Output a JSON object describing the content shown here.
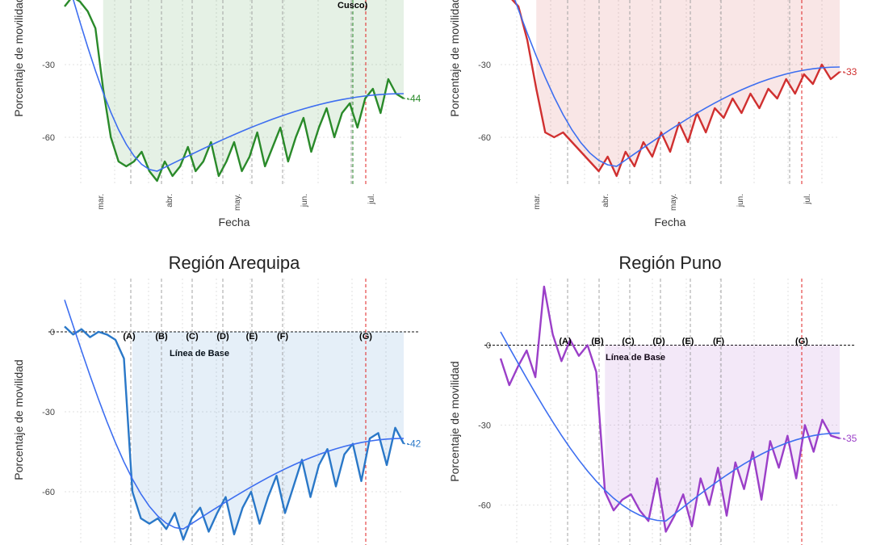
{
  "chart_data": [
    {
      "type": "line",
      "panel": "top-left",
      "title": "",
      "xlabel": "Fecha",
      "ylabel": "Porcentaje de movilidad",
      "ylim": [
        -80,
        0
      ],
      "yticks": [
        -30,
        -60
      ],
      "ytick_labels": [
        "-30",
        "-60"
      ],
      "xticks": [
        "mar.",
        "abr.",
        "may.",
        "jun.",
        "jul."
      ],
      "color": "#2a8a2a",
      "end_label": "-44",
      "annotations": [
        "Cusco)"
      ],
      "series": [
        {
          "values": [
            -6,
            -2,
            -4,
            -8,
            -15,
            -40,
            -60,
            -70,
            -72,
            -70,
            -66,
            -74,
            -78,
            -70,
            -76,
            -72,
            -64,
            -74,
            -70,
            -62,
            -76,
            -70,
            -62,
            -74,
            -68,
            -58,
            -72,
            -64,
            -56,
            -70,
            -60,
            -52,
            -66,
            -56,
            -48,
            -60,
            -50,
            -46,
            -56,
            -44,
            -40,
            -50,
            -36,
            -42,
            -44
          ]
        }
      ]
    },
    {
      "type": "line",
      "panel": "top-right",
      "title": "",
      "xlabel": "Fecha",
      "ylabel": "Porcentaje de movilidad",
      "ylim": [
        -80,
        0
      ],
      "yticks": [
        -30,
        -60
      ],
      "ytick_labels": [
        "-30",
        "-60"
      ],
      "xticks": [
        "mar.",
        "abr.",
        "may.",
        "jun.",
        "jul."
      ],
      "color": "#d03030",
      "end_label": "-33",
      "series": [
        {
          "values": [
            -2,
            -2,
            -6,
            -20,
            -40,
            -58,
            -60,
            -58,
            -62,
            -66,
            -70,
            -74,
            -68,
            -76,
            -66,
            -72,
            -62,
            -68,
            -58,
            -66,
            -54,
            -62,
            -50,
            -58,
            -48,
            -52,
            -44,
            -50,
            -42,
            -48,
            -40,
            -44,
            -36,
            -42,
            -34,
            -38,
            -30,
            -36,
            -33
          ]
        }
      ]
    },
    {
      "type": "line",
      "panel": "bottom-left",
      "title": "Región Arequipa",
      "xlabel": "",
      "ylabel": "Porcentaje de movilidad",
      "ylim": [
        -80,
        20
      ],
      "yticks": [
        0,
        -30,
        -60
      ],
      "ytick_labels": [
        "0",
        "-30",
        "-60"
      ],
      "baseline_label": "Línea de Base",
      "events": [
        "(A)",
        "(B)",
        "(C)",
        "(D)",
        "(E)",
        "(F)",
        "(G)"
      ],
      "color": "#2a78c8",
      "end_label": "-42",
      "series": [
        {
          "values": [
            2,
            -1,
            1,
            -2,
            0,
            -1,
            -3,
            -10,
            -60,
            -70,
            -72,
            -70,
            -74,
            -68,
            -78,
            -70,
            -66,
            -75,
            -68,
            -62,
            -76,
            -66,
            -60,
            -72,
            -62,
            -54,
            -68,
            -58,
            -48,
            -62,
            -50,
            -44,
            -58,
            -46,
            -42,
            -56,
            -40,
            -38,
            -50,
            -36,
            -42
          ]
        }
      ]
    },
    {
      "type": "line",
      "panel": "bottom-right",
      "title": "Región Puno",
      "xlabel": "",
      "ylabel": "Porcentaje de movilidad",
      "ylim": [
        -75,
        25
      ],
      "yticks": [
        0,
        -30,
        -60
      ],
      "ytick_labels": [
        "0",
        "-30",
        "-60"
      ],
      "baseline_label": "Línea de Base",
      "events": [
        "(A)",
        "(B)",
        "(C)",
        "(D)",
        "(E)",
        "(F)",
        "(G)"
      ],
      "color": "#9b3fc8",
      "end_label": "-35",
      "series": [
        {
          "values": [
            -5,
            -15,
            -8,
            -2,
            -12,
            22,
            4,
            -6,
            2,
            -4,
            0,
            -10,
            -55,
            -62,
            -58,
            -56,
            -62,
            -66,
            -50,
            -70,
            -64,
            -56,
            -68,
            -50,
            -60,
            -46,
            -64,
            -44,
            -54,
            -40,
            -58,
            -36,
            -46,
            -34,
            -50,
            -30,
            -40,
            -28,
            -34,
            -35
          ]
        }
      ]
    }
  ]
}
